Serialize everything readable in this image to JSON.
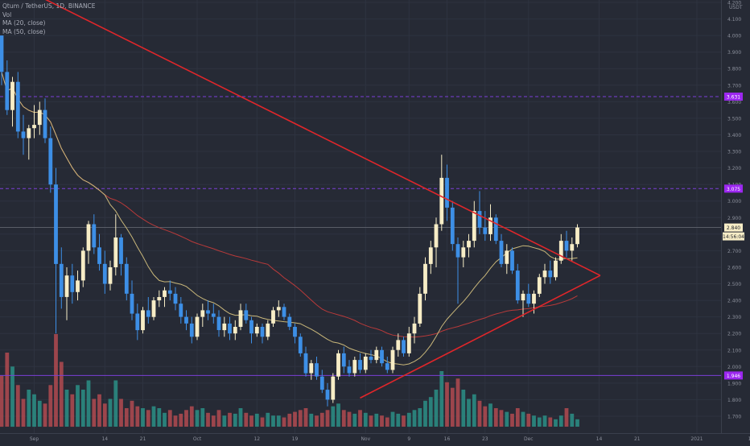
{
  "header": {
    "symbol": "Qtum / TetherUS, 1D, BINANCE",
    "vol_label": "Vol",
    "ma20_label": "MA (20, close)",
    "ma50_label": "MA (50, close)"
  },
  "colors": {
    "background": "#262a35",
    "grid": "#2e3340",
    "up_candle": "#f7edc6",
    "down_candle": "#3d8fe6",
    "vol_up": "#2b8f86",
    "vol_down": "#b24a50",
    "ma20": "#c9b77a",
    "ma50": "#b83a3a",
    "trendline": "#e0262a",
    "level_line": "#7b3fd6",
    "label_purple": "#9c27f0",
    "last_price_label": "#f7edc6"
  },
  "chart_data": {
    "type": "candlestick",
    "title": "Qtum / TetherUS, 1D, BINANCE",
    "y_unit": "USDT",
    "yaxis_ticks": [
      "4.200",
      "4.100",
      "4.000",
      "3.900",
      "3.800",
      "3.700",
      "3.600",
      "3.500",
      "3.400",
      "3.300",
      "3.200",
      "3.100",
      "3.000",
      "2.900",
      "2.800",
      "2.700",
      "2.600",
      "2.500",
      "2.400",
      "2.300",
      "2.200",
      "2.100",
      "2.000",
      "1.900",
      "1.800",
      "1.700"
    ],
    "ylim": [
      1.65,
      4.25
    ],
    "xaxis_ticks": [
      "Sep",
      "14",
      "21",
      "Oct",
      "12",
      "19",
      "Nov",
      "9",
      "16",
      "23",
      "Dec",
      "14",
      "21",
      "2021",
      "11"
    ],
    "horizontal_levels": [
      {
        "value": 3.631,
        "label": "3.631"
      },
      {
        "value": 3.075,
        "label": "3.075"
      },
      {
        "value": 1.946,
        "label": "1.946"
      }
    ],
    "last_price": {
      "label": "2.840",
      "countdown": "14:56:04"
    },
    "first_day": "2020-08-26",
    "ohlc": [
      [
        4.0,
        4.0,
        3.7,
        3.78
      ],
      [
        3.78,
        3.85,
        3.52,
        3.55
      ],
      [
        3.55,
        3.75,
        3.45,
        3.72
      ],
      [
        3.72,
        3.78,
        3.38,
        3.42
      ],
      [
        3.42,
        3.52,
        3.28,
        3.38
      ],
      [
        3.38,
        3.46,
        3.25,
        3.44
      ],
      [
        3.44,
        3.58,
        3.38,
        3.46
      ],
      [
        3.46,
        3.6,
        3.4,
        3.55
      ],
      [
        3.55,
        3.62,
        3.35,
        3.38
      ],
      [
        3.38,
        3.45,
        3.05,
        3.1
      ],
      [
        3.1,
        3.2,
        2.2,
        2.62
      ],
      [
        2.62,
        2.72,
        2.35,
        2.42
      ],
      [
        2.42,
        2.6,
        2.28,
        2.55
      ],
      [
        2.55,
        2.62,
        2.38,
        2.45
      ],
      [
        2.45,
        2.58,
        2.4,
        2.52
      ],
      [
        2.52,
        2.72,
        2.48,
        2.7
      ],
      [
        2.7,
        2.88,
        2.62,
        2.86
      ],
      [
        2.86,
        2.92,
        2.68,
        2.72
      ],
      [
        2.72,
        2.8,
        2.58,
        2.62
      ],
      [
        2.62,
        2.7,
        2.44,
        2.5
      ],
      [
        2.5,
        2.64,
        2.46,
        2.6
      ],
      [
        2.6,
        2.92,
        2.55,
        2.78
      ],
      [
        2.78,
        2.8,
        2.55,
        2.62
      ],
      [
        2.62,
        2.66,
        2.4,
        2.44
      ],
      [
        2.44,
        2.52,
        2.28,
        2.32
      ],
      [
        2.32,
        2.38,
        2.16,
        2.22
      ],
      [
        2.22,
        2.36,
        2.2,
        2.34
      ],
      [
        2.34,
        2.42,
        2.26,
        2.3
      ],
      [
        2.3,
        2.42,
        2.28,
        2.4
      ],
      [
        2.4,
        2.46,
        2.36,
        2.42
      ],
      [
        2.42,
        2.48,
        2.36,
        2.46
      ],
      [
        2.46,
        2.52,
        2.4,
        2.44
      ],
      [
        2.44,
        2.48,
        2.34,
        2.38
      ],
      [
        2.38,
        2.42,
        2.26,
        2.3
      ],
      [
        2.3,
        2.34,
        2.22,
        2.26
      ],
      [
        2.26,
        2.3,
        2.14,
        2.18
      ],
      [
        2.18,
        2.32,
        2.16,
        2.3
      ],
      [
        2.3,
        2.38,
        2.24,
        2.34
      ],
      [
        2.34,
        2.4,
        2.28,
        2.32
      ],
      [
        2.32,
        2.38,
        2.26,
        2.3
      ],
      [
        2.3,
        2.34,
        2.18,
        2.22
      ],
      [
        2.22,
        2.3,
        2.18,
        2.26
      ],
      [
        2.26,
        2.3,
        2.16,
        2.2
      ],
      [
        2.2,
        2.28,
        2.16,
        2.24
      ],
      [
        2.24,
        2.38,
        2.22,
        2.34
      ],
      [
        2.34,
        2.38,
        2.26,
        2.28
      ],
      [
        2.28,
        2.3,
        2.14,
        2.2
      ],
      [
        2.2,
        2.26,
        2.18,
        2.24
      ],
      [
        2.24,
        2.26,
        2.14,
        2.18
      ],
      [
        2.18,
        2.28,
        2.16,
        2.26
      ],
      [
        2.26,
        2.36,
        2.24,
        2.34
      ],
      [
        2.34,
        2.4,
        2.3,
        2.36
      ],
      [
        2.36,
        2.38,
        2.28,
        2.3
      ],
      [
        2.3,
        2.32,
        2.22,
        2.24
      ],
      [
        2.24,
        2.26,
        2.14,
        2.18
      ],
      [
        2.18,
        2.2,
        2.06,
        2.08
      ],
      [
        2.08,
        2.12,
        1.94,
        1.96
      ],
      [
        1.96,
        2.04,
        1.92,
        2.02
      ],
      [
        2.02,
        2.06,
        1.92,
        1.94
      ],
      [
        1.94,
        1.98,
        1.84,
        1.86
      ],
      [
        1.86,
        1.9,
        1.76,
        1.8
      ],
      [
        1.8,
        1.96,
        1.78,
        1.94
      ],
      [
        1.94,
        2.1,
        1.92,
        2.08
      ],
      [
        2.08,
        2.12,
        1.96,
        2.0
      ],
      [
        2.0,
        2.04,
        1.94,
        1.96
      ],
      [
        1.96,
        2.06,
        1.94,
        2.04
      ],
      [
        2.04,
        2.08,
        1.96,
        1.98
      ],
      [
        1.98,
        2.08,
        1.96,
        2.06
      ],
      [
        2.06,
        2.1,
        2.02,
        2.04
      ],
      [
        2.04,
        2.12,
        2.02,
        2.1
      ],
      [
        2.1,
        2.12,
        2.0,
        2.02
      ],
      [
        2.02,
        2.06,
        1.96,
        1.98
      ],
      [
        1.98,
        2.12,
        1.96,
        2.1
      ],
      [
        2.1,
        2.2,
        2.06,
        2.16
      ],
      [
        2.16,
        2.18,
        2.06,
        2.08
      ],
      [
        2.08,
        2.24,
        2.06,
        2.2
      ],
      [
        2.2,
        2.3,
        2.14,
        2.26
      ],
      [
        2.26,
        2.48,
        2.24,
        2.44
      ],
      [
        2.44,
        2.66,
        2.4,
        2.62
      ],
      [
        2.62,
        2.76,
        2.56,
        2.72
      ],
      [
        2.72,
        2.9,
        2.6,
        2.86
      ],
      [
        2.86,
        3.28,
        2.82,
        3.14
      ],
      [
        3.14,
        3.22,
        2.88,
        2.96
      ],
      [
        2.96,
        3.0,
        2.7,
        2.74
      ],
      [
        2.74,
        2.78,
        2.38,
        2.66
      ],
      [
        2.66,
        2.76,
        2.6,
        2.72
      ],
      [
        2.72,
        2.8,
        2.66,
        2.76
      ],
      [
        2.76,
        3.0,
        2.72,
        2.94
      ],
      [
        2.94,
        3.06,
        2.8,
        2.84
      ],
      [
        2.84,
        2.94,
        2.76,
        2.8
      ],
      [
        2.8,
        2.98,
        2.76,
        2.9
      ],
      [
        2.9,
        2.92,
        2.74,
        2.76
      ],
      [
        2.76,
        2.8,
        2.6,
        2.62
      ],
      [
        2.62,
        2.74,
        2.56,
        2.7
      ],
      [
        2.7,
        2.72,
        2.56,
        2.58
      ],
      [
        2.58,
        2.62,
        2.38,
        2.4
      ],
      [
        2.4,
        2.46,
        2.3,
        2.44
      ],
      [
        2.44,
        2.5,
        2.36,
        2.38
      ],
      [
        2.38,
        2.46,
        2.32,
        2.44
      ],
      [
        2.44,
        2.56,
        2.42,
        2.54
      ],
      [
        2.54,
        2.62,
        2.5,
        2.58
      ],
      [
        2.58,
        2.64,
        2.5,
        2.54
      ],
      [
        2.54,
        2.66,
        2.52,
        2.64
      ],
      [
        2.64,
        2.8,
        2.62,
        2.76
      ],
      [
        2.76,
        2.82,
        2.66,
        2.7
      ],
      [
        2.7,
        2.78,
        2.64,
        2.74
      ],
      [
        2.74,
        2.86,
        2.72,
        2.84
      ]
    ],
    "volume_rel": [
      0.55,
      0.8,
      0.65,
      0.45,
      0.3,
      0.4,
      0.35,
      0.28,
      0.25,
      0.45,
      1.0,
      0.7,
      0.4,
      0.35,
      0.45,
      0.4,
      0.5,
      0.3,
      0.35,
      0.25,
      0.3,
      0.5,
      0.3,
      0.2,
      0.28,
      0.22,
      0.2,
      0.18,
      0.22,
      0.2,
      0.15,
      0.18,
      0.12,
      0.14,
      0.18,
      0.22,
      0.18,
      0.2,
      0.15,
      0.12,
      0.18,
      0.12,
      0.15,
      0.14,
      0.2,
      0.15,
      0.12,
      0.14,
      0.1,
      0.15,
      0.12,
      0.12,
      0.1,
      0.14,
      0.16,
      0.18,
      0.2,
      0.14,
      0.12,
      0.15,
      0.18,
      0.22,
      0.25,
      0.18,
      0.16,
      0.14,
      0.18,
      0.15,
      0.12,
      0.14,
      0.12,
      0.1,
      0.16,
      0.14,
      0.12,
      0.15,
      0.18,
      0.2,
      0.28,
      0.32,
      0.4,
      0.6,
      0.48,
      0.42,
      0.52,
      0.4,
      0.3,
      0.35,
      0.28,
      0.22,
      0.25,
      0.2,
      0.18,
      0.16,
      0.14,
      0.2,
      0.16,
      0.14,
      0.12,
      0.1,
      0.12,
      0.1,
      0.08,
      0.12,
      0.2,
      0.14,
      0.08
    ]
  }
}
